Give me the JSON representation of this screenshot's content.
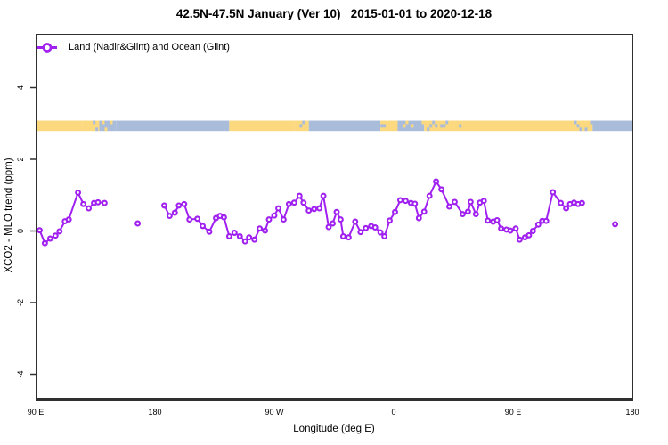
{
  "title": "42.5N-47.5N January (Ver 10)   2015-01-01 to 2020-12-18",
  "legend": {
    "label": "Land (Nadir&Glint) and Ocean (Glint)"
  },
  "axes": {
    "x_label": "Longitude (deg E)",
    "y_label": "XCO2 - MLO trend (ppm)",
    "x_ticks": [
      {
        "lon": 90,
        "label": "90 E"
      },
      {
        "lon": 180,
        "label": "180"
      },
      {
        "lon": 270,
        "label": "90 W"
      },
      {
        "lon": 360,
        "label": "0"
      },
      {
        "lon": 450,
        "label": "90 E"
      },
      {
        "lon": 540,
        "label": "180"
      }
    ],
    "y_ticks": [
      {
        "value": -4,
        "label": "-4"
      },
      {
        "value": -2,
        "label": "-2"
      },
      {
        "value": 0,
        "label": "0"
      },
      {
        "value": 2,
        "label": "2"
      },
      {
        "value": 4,
        "label": "4"
      }
    ]
  },
  "colors": {
    "series": "#A020F0",
    "land": "#FCD87E",
    "ocean": "#A9BDDB",
    "axis": "#303030",
    "text": "#000000"
  },
  "chart_data": {
    "type": "line",
    "title": "42.5N-47.5N January (Ver 10)   2015-01-01 to 2020-12-18",
    "xlabel": "Longitude (deg E)",
    "ylabel": "XCO2 - MLO trend (ppm)",
    "xlim": [
      90,
      540
    ],
    "ylim": [
      -4.65,
      5.5
    ],
    "grid": false,
    "legend_position": "top-left",
    "series_name": "Land (Nadir&Glint) and Ocean (Glint)",
    "marker": "open-circle",
    "segments": [
      [
        [
          93,
          0.02
        ],
        [
          97,
          -0.34
        ],
        [
          101,
          -0.21
        ],
        [
          105,
          -0.13
        ],
        [
          108,
          -0.01
        ],
        [
          112,
          0.27
        ],
        [
          115,
          0.32
        ],
        [
          122,
          1.07
        ],
        [
          126,
          0.75
        ],
        [
          130,
          0.63
        ],
        [
          134,
          0.78
        ],
        [
          137,
          0.8
        ],
        [
          142,
          0.78
        ]
      ],
      [
        [
          167,
          0.21
        ]
      ],
      [
        [
          187,
          0.71
        ],
        [
          191,
          0.42
        ],
        [
          195,
          0.51
        ],
        [
          198,
          0.71
        ],
        [
          202,
          0.75
        ],
        [
          206,
          0.32
        ],
        [
          212,
          0.34
        ],
        [
          216,
          0.14
        ],
        [
          221,
          -0.02
        ],
        [
          226,
          0.36
        ],
        [
          229,
          0.42
        ],
        [
          232,
          0.38
        ],
        [
          236,
          -0.15
        ],
        [
          240,
          -0.05
        ],
        [
          244,
          -0.15
        ],
        [
          248,
          -0.29
        ],
        [
          251,
          -0.18
        ],
        [
          255,
          -0.24
        ],
        [
          259,
          0.07
        ],
        [
          263,
          0.01
        ],
        [
          266,
          0.32
        ],
        [
          270,
          0.43
        ],
        [
          273,
          0.63
        ],
        [
          277,
          0.32
        ],
        [
          281,
          0.75
        ],
        [
          285,
          0.79
        ],
        [
          289,
          0.98
        ],
        [
          292,
          0.79
        ],
        [
          296,
          0.57
        ],
        [
          300,
          0.61
        ],
        [
          304,
          0.63
        ],
        [
          307,
          0.98
        ],
        [
          311,
          0.11
        ],
        [
          314,
          0.21
        ],
        [
          317,
          0.53
        ],
        [
          320,
          0.32
        ],
        [
          322,
          -0.15
        ],
        [
          326,
          -0.18
        ],
        [
          331,
          0.26
        ],
        [
          335,
          -0.03
        ],
        [
          339,
          0.08
        ],
        [
          343,
          0.14
        ],
        [
          346,
          0.1
        ],
        [
          350,
          -0.04
        ],
        [
          353,
          -0.15
        ],
        [
          357,
          0.29
        ],
        [
          361,
          0.53
        ],
        [
          365,
          0.86
        ],
        [
          369,
          0.84
        ],
        [
          373,
          0.78
        ],
        [
          376,
          0.76
        ],
        [
          379,
          0.36
        ],
        [
          383,
          0.54
        ],
        [
          387,
          0.98
        ],
        [
          392,
          1.38
        ],
        [
          396,
          1.16
        ],
        [
          402,
          0.68
        ],
        [
          406,
          0.81
        ],
        [
          412,
          0.47
        ],
        [
          416,
          0.54
        ],
        [
          418,
          0.81
        ],
        [
          422,
          0.47
        ],
        [
          425,
          0.79
        ],
        [
          428,
          0.84
        ],
        [
          431,
          0.29
        ],
        [
          435,
          0.26
        ],
        [
          438,
          0.3
        ],
        [
          441,
          0.07
        ],
        [
          445,
          0.04
        ],
        [
          448,
          0.01
        ],
        [
          452,
          0.07
        ],
        [
          455,
          -0.24
        ],
        [
          459,
          -0.18
        ],
        [
          462,
          -0.12
        ],
        [
          465,
          0.0
        ],
        [
          469,
          0.18
        ],
        [
          472,
          0.28
        ],
        [
          475,
          0.28
        ],
        [
          480,
          1.08
        ],
        [
          486,
          0.78
        ],
        [
          490,
          0.63
        ],
        [
          493,
          0.75
        ],
        [
          496,
          0.79
        ],
        [
          499,
          0.75
        ],
        [
          502,
          0.78
        ]
      ],
      [
        [
          527,
          0.19
        ]
      ]
    ],
    "map_strip": {
      "y_range_ppm": [
        2.79,
        3.08
      ],
      "segments": [
        {
          "from": 90,
          "to": 125,
          "kind": "land"
        },
        {
          "from": 125,
          "to": 138,
          "kind": "coast_land"
        },
        {
          "from": 138,
          "to": 151,
          "kind": "coast_ocean"
        },
        {
          "from": 151,
          "to": 236,
          "kind": "ocean"
        },
        {
          "from": 236,
          "to": 285,
          "kind": "land"
        },
        {
          "from": 285,
          "to": 296,
          "kind": "coast_land"
        },
        {
          "from": 296,
          "to": 350,
          "kind": "ocean"
        },
        {
          "from": 350,
          "to": 363,
          "kind": "coast_land"
        },
        {
          "from": 363,
          "to": 383,
          "kind": "coast_ocean"
        },
        {
          "from": 383,
          "to": 412,
          "kind": "coast_land"
        },
        {
          "from": 412,
          "to": 496,
          "kind": "land"
        },
        {
          "from": 496,
          "to": 510,
          "kind": "coast_land"
        },
        {
          "from": 510,
          "to": 540,
          "kind": "ocean"
        }
      ]
    }
  }
}
